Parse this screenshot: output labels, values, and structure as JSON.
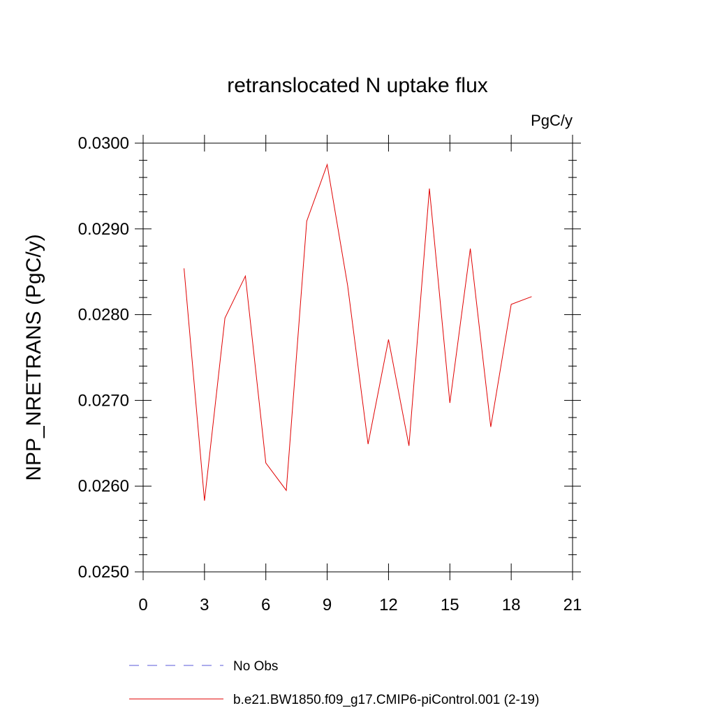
{
  "chart_data": {
    "type": "line",
    "title": "retranslocated N uptake flux",
    "units_label": "PgC/y",
    "ylabel": "NPP_NRETRANS  (PgC/y)",
    "xlabel": "",
    "xlim": [
      0,
      21
    ],
    "ylim": [
      0.025,
      0.03
    ],
    "x_ticks": [
      "0",
      "3",
      "6",
      "9",
      "12",
      "15",
      "18",
      "21"
    ],
    "y_ticks": [
      "0.0250",
      "0.0260",
      "0.0270",
      "0.0280",
      "0.0290",
      "0.0300"
    ],
    "series": [
      {
        "name": "No Obs",
        "color": "#5a5ad8",
        "style": "dashed",
        "x": [],
        "y": []
      },
      {
        "name": "b.e21.BW1850.f09_g17.CMIP6-piControl.001 (2-19)",
        "color": "#e00000",
        "style": "solid",
        "x": [
          2,
          3,
          4,
          5,
          6,
          7,
          8,
          9,
          10,
          11,
          12,
          13,
          14,
          15,
          16,
          17,
          18,
          19
        ],
        "y": [
          0.02854,
          0.02583,
          0.02796,
          0.02845,
          0.02627,
          0.02595,
          0.02909,
          0.02975,
          0.02834,
          0.02649,
          0.02771,
          0.02647,
          0.02947,
          0.02697,
          0.02877,
          0.02669,
          0.02812,
          0.02821
        ]
      }
    ]
  }
}
